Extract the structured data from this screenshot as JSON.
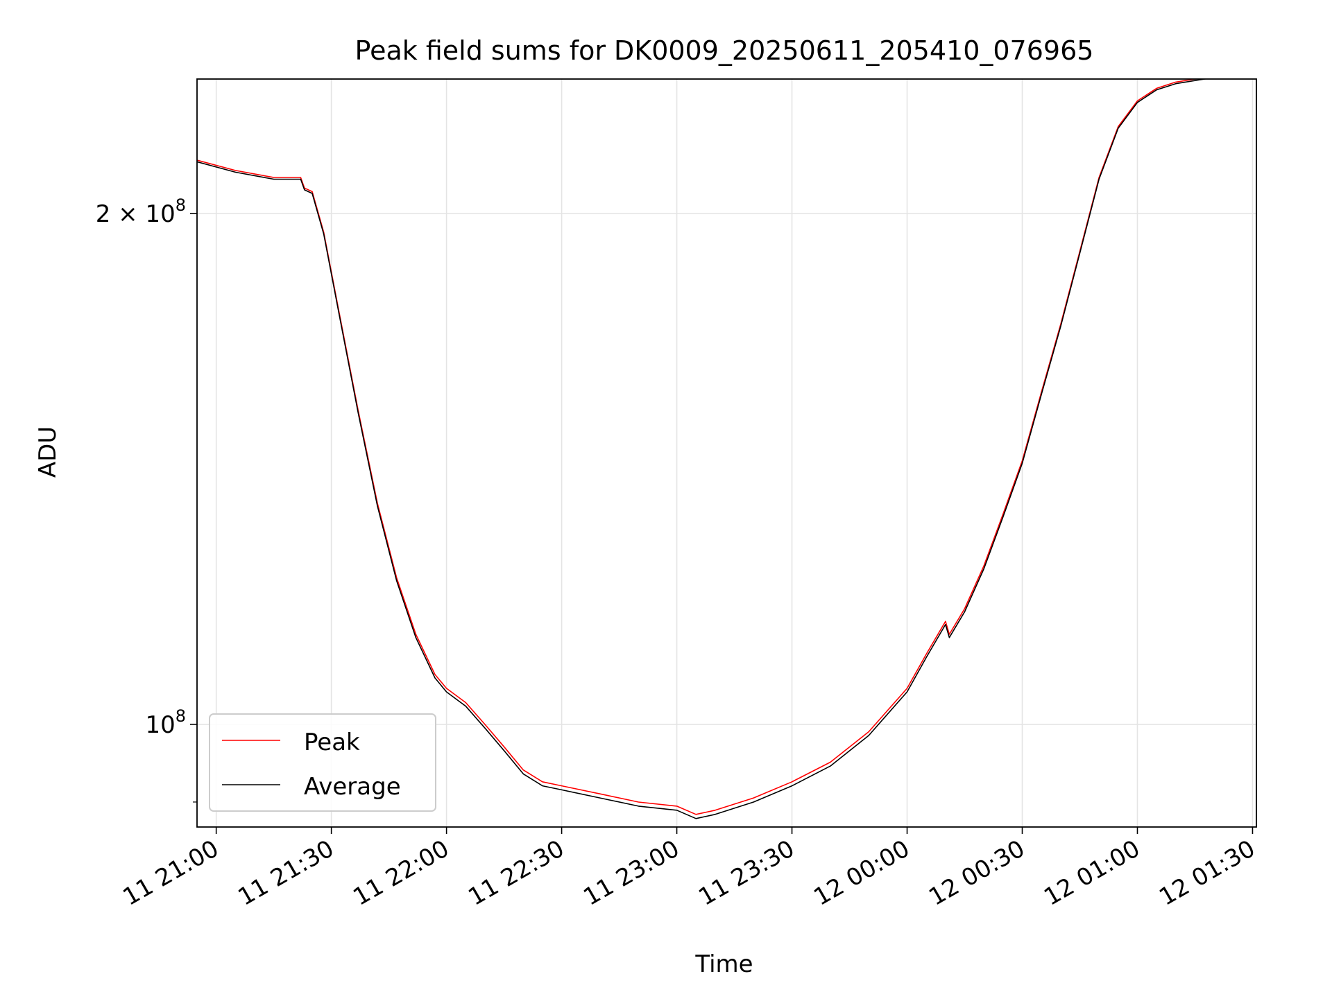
{
  "chart_data": {
    "type": "line",
    "title": "Peak field sums for DK0009_20250611_205410_076965",
    "xlabel": "Time",
    "ylabel": "ADU",
    "y_scale": "log",
    "ylim": [
      87000000,
      240000000
    ],
    "xlim": [
      "2025-06-11 20:55",
      "2025-06-12 01:31"
    ],
    "grid": true,
    "legend_position": "lower-left",
    "x_ticks": [
      {
        "value": "2025-06-11 21:00",
        "label": "11 21:00"
      },
      {
        "value": "2025-06-11 21:30",
        "label": "11 21:30"
      },
      {
        "value": "2025-06-11 22:00",
        "label": "11 22:00"
      },
      {
        "value": "2025-06-11 22:30",
        "label": "11 22:30"
      },
      {
        "value": "2025-06-11 23:00",
        "label": "11 23:00"
      },
      {
        "value": "2025-06-11 23:30",
        "label": "11 23:30"
      },
      {
        "value": "2025-06-12 00:00",
        "label": "12 00:00"
      },
      {
        "value": "2025-06-12 00:30",
        "label": "12 00:30"
      },
      {
        "value": "2025-06-12 01:00",
        "label": "12 01:00"
      },
      {
        "value": "2025-06-12 01:30",
        "label": "12 01:30"
      }
    ],
    "y_ticks": [
      {
        "value": 100000000,
        "base": "10",
        "exp": "8"
      },
      {
        "value": 200000000,
        "coef": "2 × ",
        "base": "10",
        "exp": "8"
      }
    ],
    "series": [
      {
        "name": "Peak",
        "color": "#ff0000",
        "x": [
          "2025-06-11 20:55",
          "2025-06-11 21:05",
          "2025-06-11 21:15",
          "2025-06-11 21:22",
          "2025-06-11 21:23",
          "2025-06-11 21:25",
          "2025-06-11 21:28",
          "2025-06-11 21:32",
          "2025-06-11 21:37",
          "2025-06-11 21:42",
          "2025-06-11 21:47",
          "2025-06-11 21:52",
          "2025-06-11 21:57",
          "2025-06-11 22:00",
          "2025-06-11 22:05",
          "2025-06-11 22:10",
          "2025-06-11 22:15",
          "2025-06-11 22:20",
          "2025-06-11 22:25",
          "2025-06-11 22:30",
          "2025-06-11 22:40",
          "2025-06-11 22:50",
          "2025-06-11 23:00",
          "2025-06-11 23:05",
          "2025-06-11 23:10",
          "2025-06-11 23:20",
          "2025-06-11 23:30",
          "2025-06-11 23:40",
          "2025-06-11 23:50",
          "2025-06-12 00:00",
          "2025-06-12 00:05",
          "2025-06-12 00:10",
          "2025-06-12 00:11",
          "2025-06-12 00:15",
          "2025-06-12 00:20",
          "2025-06-12 00:25",
          "2025-06-12 00:30",
          "2025-06-12 00:35",
          "2025-06-12 00:40",
          "2025-06-12 00:45",
          "2025-06-12 00:50",
          "2025-06-12 00:55",
          "2025-06-12 01:00",
          "2025-06-12 01:05",
          "2025-06-12 01:10",
          "2025-06-12 01:15",
          "2025-06-12 01:20",
          "2025-06-12 01:25",
          "2025-06-12 01:31"
        ],
        "y": [
          215000000,
          212000000,
          210000000,
          210000000,
          207000000,
          206000000,
          195000000,
          175000000,
          153000000,
          135000000,
          122000000,
          113000000,
          107000000,
          105000000,
          103000000,
          100000000,
          97000000,
          94000000,
          92500000,
          92000000,
          91000000,
          90000000,
          89500000,
          88500000,
          89000000,
          90500000,
          92500000,
          95000000,
          99000000,
          105000000,
          110000000,
          115000000,
          113000000,
          117000000,
          124000000,
          133000000,
          143000000,
          157000000,
          172000000,
          190000000,
          210000000,
          225000000,
          233000000,
          237000000,
          239000000,
          240000000,
          241000000,
          242000000,
          242000000
        ]
      },
      {
        "name": "Average",
        "color": "#000000",
        "x": [
          "2025-06-11 20:55",
          "2025-06-11 21:05",
          "2025-06-11 21:15",
          "2025-06-11 21:22",
          "2025-06-11 21:23",
          "2025-06-11 21:25",
          "2025-06-11 21:28",
          "2025-06-11 21:32",
          "2025-06-11 21:37",
          "2025-06-11 21:42",
          "2025-06-11 21:47",
          "2025-06-11 21:52",
          "2025-06-11 21:57",
          "2025-06-11 22:00",
          "2025-06-11 22:05",
          "2025-06-11 22:10",
          "2025-06-11 22:15",
          "2025-06-11 22:20",
          "2025-06-11 22:25",
          "2025-06-11 22:30",
          "2025-06-11 22:40",
          "2025-06-11 22:50",
          "2025-06-11 23:00",
          "2025-06-11 23:05",
          "2025-06-11 23:10",
          "2025-06-11 23:20",
          "2025-06-11 23:30",
          "2025-06-11 23:40",
          "2025-06-11 23:50",
          "2025-06-12 00:00",
          "2025-06-12 00:05",
          "2025-06-12 00:10",
          "2025-06-12 00:11",
          "2025-06-12 00:15",
          "2025-06-12 00:20",
          "2025-06-12 00:25",
          "2025-06-12 00:30",
          "2025-06-12 00:35",
          "2025-06-12 00:40",
          "2025-06-12 00:45",
          "2025-06-12 00:50",
          "2025-06-12 00:55",
          "2025-06-12 01:00",
          "2025-06-12 01:05",
          "2025-06-12 01:10",
          "2025-06-12 01:15",
          "2025-06-12 01:20",
          "2025-06-12 01:25",
          "2025-06-12 01:31"
        ],
        "y": [
          214500000,
          211500000,
          209500000,
          209500000,
          206500000,
          205500000,
          194500000,
          174500000,
          152500000,
          134500000,
          121500000,
          112500000,
          106500000,
          104500000,
          102500000,
          99500000,
          96500000,
          93500000,
          92000000,
          91500000,
          90500000,
          89500000,
          89000000,
          88000000,
          88500000,
          90000000,
          92000000,
          94500000,
          98500000,
          104500000,
          109500000,
          114500000,
          112500000,
          116500000,
          123500000,
          132500000,
          142500000,
          156500000,
          171500000,
          189500000,
          209500000,
          224500000,
          232500000,
          236500000,
          238500000,
          239500000,
          240500000,
          241500000,
          241500000
        ]
      }
    ]
  }
}
